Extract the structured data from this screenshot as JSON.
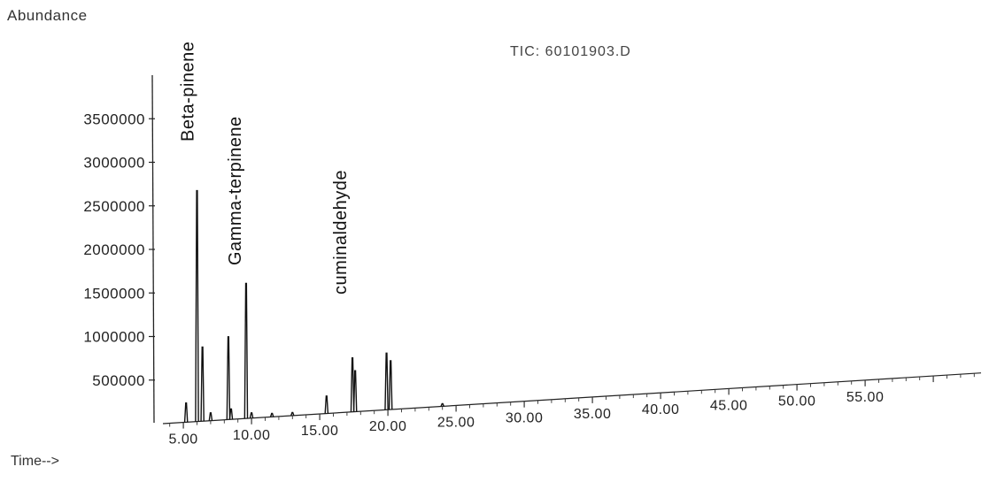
{
  "chart_data": {
    "type": "line",
    "title": "TIC: 60101903.D",
    "xlabel": "Time-->",
    "ylabel": "Abundance",
    "xlim": [
      3.5,
      63.5
    ],
    "ylim": [
      0,
      4000000
    ],
    "x_ticks": [
      5.0,
      10.0,
      15.0,
      20.0,
      25.0,
      30.0,
      35.0,
      40.0,
      45.0,
      50.0,
      55.0
    ],
    "x_tick_labels": [
      "5.00",
      "10.00",
      "15.00",
      "20.00",
      "25.00",
      "30.00",
      "35.00",
      "40.00",
      "45.00",
      "50.00",
      "55.00"
    ],
    "y_ticks": [
      500000,
      1000000,
      1500000,
      2000000,
      2500000,
      3000000,
      3500000
    ],
    "y_tick_labels": [
      "500000",
      "1000000",
      "1500000",
      "2000000",
      "2500000",
      "3000000",
      "3500000"
    ],
    "grid": false,
    "legend": "none",
    "series": [
      {
        "color": "#111111",
        "peaks": [
          {
            "x": 5.2,
            "y": 220000
          },
          {
            "x": 6.0,
            "y": 2650000
          },
          {
            "x": 6.4,
            "y": 850000
          },
          {
            "x": 7.0,
            "y": 90000
          },
          {
            "x": 8.3,
            "y": 950000
          },
          {
            "x": 8.5,
            "y": 120000
          },
          {
            "x": 9.6,
            "y": 1550000
          },
          {
            "x": 10.0,
            "y": 60000
          },
          {
            "x": 11.5,
            "y": 40000
          },
          {
            "x": 13.0,
            "y": 35000
          },
          {
            "x": 15.5,
            "y": 200000
          },
          {
            "x": 17.4,
            "y": 620000
          },
          {
            "x": 17.6,
            "y": 470000
          },
          {
            "x": 19.9,
            "y": 650000
          },
          {
            "x": 20.2,
            "y": 560000
          },
          {
            "x": 24.0,
            "y": 30000
          }
        ]
      }
    ],
    "annotations": [
      {
        "text": "Beta-pinene",
        "x": 6.0
      },
      {
        "text": "Gamma-terpinene",
        "x": 9.6
      },
      {
        "text": "cuminaldehyde",
        "x": 17.4
      }
    ]
  }
}
